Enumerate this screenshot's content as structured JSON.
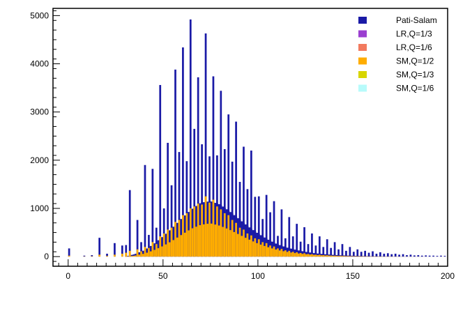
{
  "chart_data": {
    "type": "bar",
    "title": "",
    "xlabel": "",
    "ylabel": "",
    "xlim": [
      -8,
      200
    ],
    "ylim": [
      -200,
      5150
    ],
    "grid": false,
    "legend_position": "top-right",
    "x_ticks": [
      0,
      50,
      100,
      150,
      200
    ],
    "x_tick_labels": [
      "0",
      "50",
      "100",
      "150",
      "200"
    ],
    "y_ticks": [
      0,
      1000,
      2000,
      3000,
      4000,
      5000
    ],
    "y_tick_labels": [
      "0",
      "1000",
      "2000",
      "3000",
      "4000",
      "5000"
    ],
    "series": [
      {
        "name": "Pati-Salam",
        "color": "#1a1aa6"
      },
      {
        "name": "LR,Q=1/3",
        "color": "#9b3fd0"
      },
      {
        "name": "LR,Q=1/6",
        "color": "#f27a5e"
      },
      {
        "name": "SM,Q=1/2",
        "color": "#ffad00"
      },
      {
        "name": "SM,Q=1/3",
        "color": "#d8d600"
      },
      {
        "name": "SM,Q=1/6",
        "color": "#b7fbfb"
      }
    ],
    "spikes": {
      "x": [
        0,
        8,
        12,
        16,
        20,
        24,
        28,
        30,
        32,
        36,
        38,
        40,
        42,
        44,
        46,
        48,
        50,
        52,
        54,
        56,
        58,
        60,
        62,
        64,
        66,
        68,
        70,
        72,
        74,
        76,
        78,
        80,
        82,
        84,
        86,
        88,
        90,
        92,
        94,
        96,
        98,
        100,
        102,
        104,
        106,
        108,
        110,
        112,
        114,
        116,
        118,
        120,
        122,
        124,
        126,
        128,
        130,
        132,
        134,
        136,
        138,
        140,
        142,
        144,
        146,
        148,
        150,
        152,
        154,
        156,
        158,
        160,
        162,
        164,
        166,
        168,
        170,
        172,
        174,
        176,
        178,
        180,
        182,
        184,
        186,
        188,
        190,
        192,
        194,
        196,
        198
      ],
      "pati_salam": [
        170,
        20,
        30,
        390,
        60,
        280,
        230,
        240,
        1380,
        760,
        300,
        1900,
        450,
        1820,
        600,
        3560,
        1000,
        2360,
        1480,
        3880,
        2170,
        4340,
        1980,
        4920,
        2650,
        3720,
        2330,
        4630,
        2080,
        3740,
        2100,
        3440,
        2230,
        2950,
        1970,
        2800,
        1550,
        2280,
        1400,
        2200,
        1240,
        1250,
        780,
        1280,
        920,
        1150,
        430,
        980,
        380,
        820,
        420,
        680,
        310,
        610,
        260,
        480,
        230,
        420,
        200,
        360,
        180,
        300,
        150,
        260,
        120,
        200,
        100,
        150,
        100,
        120,
        80,
        110,
        60,
        90,
        60,
        70,
        50,
        60,
        40,
        50,
        30,
        40,
        25,
        30,
        20,
        25,
        20,
        20,
        15,
        20,
        15
      ],
      "sm_half": [
        20,
        5,
        8,
        40,
        15,
        40,
        60,
        80,
        120,
        150,
        110,
        200,
        180,
        300,
        260,
        420,
        480,
        560,
        600,
        720,
        760,
        860,
        900,
        1000,
        1040,
        1100,
        1080,
        1250,
        1120,
        1180,
        1040,
        980,
        900,
        860,
        760,
        700,
        600,
        560,
        480,
        440,
        380,
        360,
        300,
        280,
        230,
        210,
        170,
        160,
        130,
        120,
        100,
        90,
        75,
        70,
        55,
        50,
        40,
        38,
        30,
        28,
        22,
        20,
        16,
        15,
        12,
        10,
        8,
        7,
        6,
        5,
        4,
        4,
        3,
        3,
        2,
        2,
        2,
        2,
        1,
        1,
        1,
        1,
        1,
        1,
        1,
        1,
        1,
        1,
        1,
        1,
        1
      ]
    },
    "continuum": {
      "x": [
        30,
        35,
        40,
        45,
        50,
        55,
        60,
        65,
        70,
        75,
        80,
        85,
        90,
        95,
        100,
        105,
        110,
        115,
        120,
        125,
        130,
        135,
        140,
        145,
        150,
        155,
        160,
        170,
        180,
        190,
        200
      ],
      "pati_salam": [
        0,
        50,
        130,
        260,
        420,
        600,
        800,
        980,
        1120,
        1150,
        1080,
        940,
        780,
        620,
        480,
        360,
        260,
        190,
        140,
        100,
        70,
        50,
        35,
        25,
        18,
        12,
        8,
        4,
        2,
        1,
        0
      ],
      "sm_half": [
        0,
        20,
        60,
        130,
        220,
        330,
        460,
        580,
        660,
        690,
        640,
        560,
        460,
        360,
        270,
        200,
        140,
        100,
        70,
        50,
        35,
        25,
        17,
        12,
        8,
        6,
        4,
        2,
        1,
        0,
        0
      ]
    }
  }
}
